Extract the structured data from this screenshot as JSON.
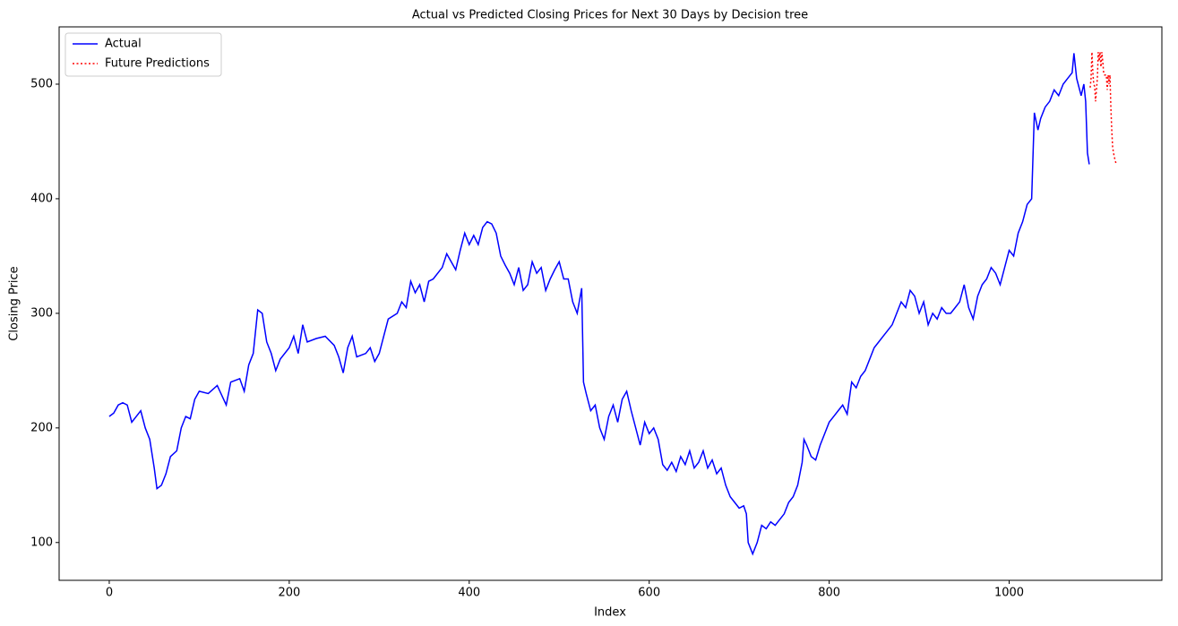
{
  "chart_data": {
    "type": "line",
    "title": "Actual vs Predicted Closing Prices for Next 30 Days by Decision tree",
    "xlabel": "Index",
    "ylabel": "Closing Price",
    "xlim": [
      -55.7,
      1169.7
    ],
    "ylim": [
      67,
      550
    ],
    "xticks": [
      0,
      200,
      400,
      600,
      800,
      1000
    ],
    "yticks": [
      100,
      200,
      300,
      400,
      500
    ],
    "grid": false,
    "legend": "upper left",
    "series": [
      {
        "name": "Actual",
        "color": "#0000ff",
        "style": "solid",
        "x": [
          0,
          5,
          10,
          15,
          20,
          25,
          30,
          35,
          40,
          45,
          50,
          53,
          58,
          63,
          68,
          75,
          80,
          85,
          90,
          95,
          100,
          110,
          120,
          130,
          135,
          145,
          150,
          155,
          160,
          165,
          170,
          175,
          180,
          185,
          190,
          200,
          205,
          210,
          215,
          220,
          230,
          240,
          250,
          255,
          260,
          265,
          270,
          275,
          285,
          290,
          295,
          300,
          305,
          310,
          320,
          325,
          330,
          335,
          340,
          345,
          350,
          355,
          360,
          370,
          375,
          380,
          385,
          390,
          395,
          400,
          405,
          410,
          415,
          420,
          425,
          430,
          435,
          440,
          445,
          450,
          455,
          460,
          465,
          470,
          475,
          480,
          485,
          490,
          495,
          500,
          505,
          510,
          515,
          520,
          525,
          527,
          530,
          535,
          540,
          545,
          550,
          555,
          560,
          565,
          570,
          575,
          580,
          585,
          590,
          595,
          600,
          605,
          610,
          615,
          620,
          625,
          630,
          635,
          640,
          645,
          650,
          655,
          660,
          665,
          670,
          675,
          680,
          685,
          690,
          695,
          700,
          705,
          708,
          710,
          715,
          720,
          725,
          730,
          735,
          740,
          745,
          750,
          755,
          760,
          765,
          770,
          772,
          775,
          780,
          785,
          790,
          795,
          800,
          805,
          810,
          815,
          820,
          825,
          830,
          835,
          840,
          845,
          850,
          855,
          860,
          865,
          870,
          875,
          880,
          885,
          890,
          895,
          900,
          905,
          910,
          915,
          920,
          925,
          930,
          935,
          940,
          945,
          950,
          955,
          960,
          965,
          970,
          975,
          980,
          985,
          990,
          995,
          1000,
          1005,
          1010,
          1015,
          1020,
          1025,
          1028,
          1032,
          1035,
          1040,
          1045,
          1050,
          1055,
          1060,
          1065,
          1070,
          1072,
          1075,
          1080,
          1083,
          1085,
          1087,
          1089
        ],
        "values": [
          210,
          213,
          220,
          222,
          220,
          205,
          210,
          215,
          200,
          190,
          165,
          147,
          150,
          160,
          175,
          180,
          200,
          210,
          208,
          225,
          232,
          230,
          237,
          220,
          240,
          243,
          232,
          255,
          265,
          303,
          300,
          275,
          265,
          250,
          260,
          270,
          280,
          265,
          290,
          275,
          278,
          280,
          272,
          262,
          248,
          270,
          280,
          262,
          265,
          270,
          258,
          265,
          280,
          295,
          300,
          310,
          305,
          328,
          318,
          325,
          310,
          328,
          330,
          340,
          352,
          345,
          338,
          355,
          370,
          360,
          368,
          360,
          375,
          380,
          378,
          370,
          350,
          342,
          335,
          325,
          340,
          320,
          325,
          345,
          335,
          340,
          320,
          330,
          338,
          345,
          330,
          330,
          310,
          300,
          322,
          240,
          230,
          215,
          220,
          200,
          190,
          210,
          220,
          205,
          225,
          232,
          215,
          200,
          185,
          205,
          195,
          200,
          190,
          168,
          163,
          170,
          162,
          175,
          168,
          180,
          165,
          170,
          180,
          165,
          172,
          160,
          165,
          150,
          140,
          135,
          130,
          132,
          125,
          100,
          90,
          100,
          115,
          112,
          118,
          115,
          120,
          125,
          135,
          140,
          150,
          170,
          190,
          185,
          175,
          172,
          185,
          195,
          205,
          210,
          215,
          220,
          212,
          240,
          235,
          245,
          250,
          260,
          270,
          275,
          280,
          285,
          290,
          300,
          310,
          305,
          320,
          315,
          300,
          310,
          290,
          300,
          295,
          305,
          300,
          300,
          305,
          310,
          325,
          305,
          295,
          315,
          325,
          330,
          340,
          335,
          325,
          340,
          355,
          350,
          370,
          380,
          395,
          400,
          475,
          460,
          470,
          480,
          485,
          495,
          490,
          500,
          505,
          510,
          527,
          505,
          490,
          500,
          485,
          440,
          430
        ]
      },
      {
        "name": "Future Predictions",
        "color": "#ff0000",
        "style": "dotted",
        "x": [
          1090,
          1091,
          1092,
          1093,
          1094,
          1095,
          1096,
          1097,
          1098,
          1099,
          1100,
          1101,
          1102,
          1103,
          1104,
          1105,
          1106,
          1107,
          1108,
          1109,
          1110,
          1111,
          1112,
          1113,
          1114,
          1115,
          1116,
          1117,
          1118,
          1119
        ],
        "values": [
          497,
          505,
          528,
          510,
          500,
          498,
          485,
          495,
          505,
          528,
          520,
          528,
          515,
          528,
          520,
          510,
          508,
          508,
          508,
          495,
          508,
          500,
          508,
          480,
          460,
          445,
          440,
          436,
          433,
          430
        ]
      }
    ]
  }
}
